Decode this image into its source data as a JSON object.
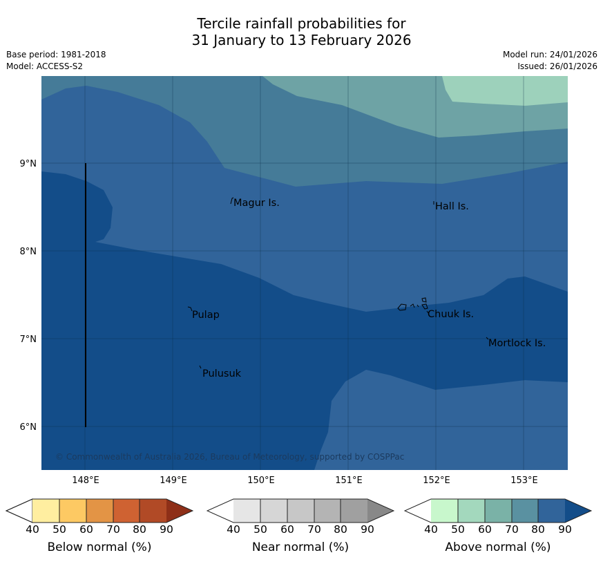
{
  "title": {
    "line1": "Tercile rainfall probabilities for",
    "line2": "31 January to 13 February 2026"
  },
  "meta": {
    "base_period": "Base period: 1981-2018",
    "model": "Model: ACCESS-S2",
    "model_run": "Model run: 24/01/2026",
    "issued": "Issued: 26/01/2026"
  },
  "axes": {
    "lon_labels": [
      "148°E",
      "149°E",
      "150°E",
      "151°E",
      "152°E",
      "153°E"
    ],
    "lat_labels": [
      "9°N",
      "8°N",
      "7°N",
      "6°N"
    ]
  },
  "places": [
    {
      "name": "Magur Is."
    },
    {
      "name": "Hall Is."
    },
    {
      "name": "Pulap"
    },
    {
      "name": "Chuuk Is."
    },
    {
      "name": "Mortlock Is."
    },
    {
      "name": "Pulusuk"
    }
  ],
  "copyright": "© Commonwealth of Australia 2026, Bureau of Meteorology, supported by COSPPac",
  "legend": {
    "ticks": [
      "40",
      "50",
      "60",
      "70",
      "80",
      "90"
    ],
    "below": {
      "title": "Below normal (%)",
      "colors": [
        "#ffeea0",
        "#fdc963",
        "#e39445",
        "#cf6232",
        "#b14a26",
        "#8e2f18"
      ]
    },
    "near": {
      "title": "Near normal (%)",
      "colors": [
        "#e6e6e6",
        "#d6d6d6",
        "#c7c7c7",
        "#b4b4b4",
        "#a0a0a0",
        "#888888"
      ]
    },
    "above": {
      "title": "Above normal (%)",
      "colors": [
        "#c8f7cc",
        "#a3d8bd",
        "#7ab2a7",
        "#5a91a1",
        "#31649a",
        "#134d89"
      ]
    }
  }
}
